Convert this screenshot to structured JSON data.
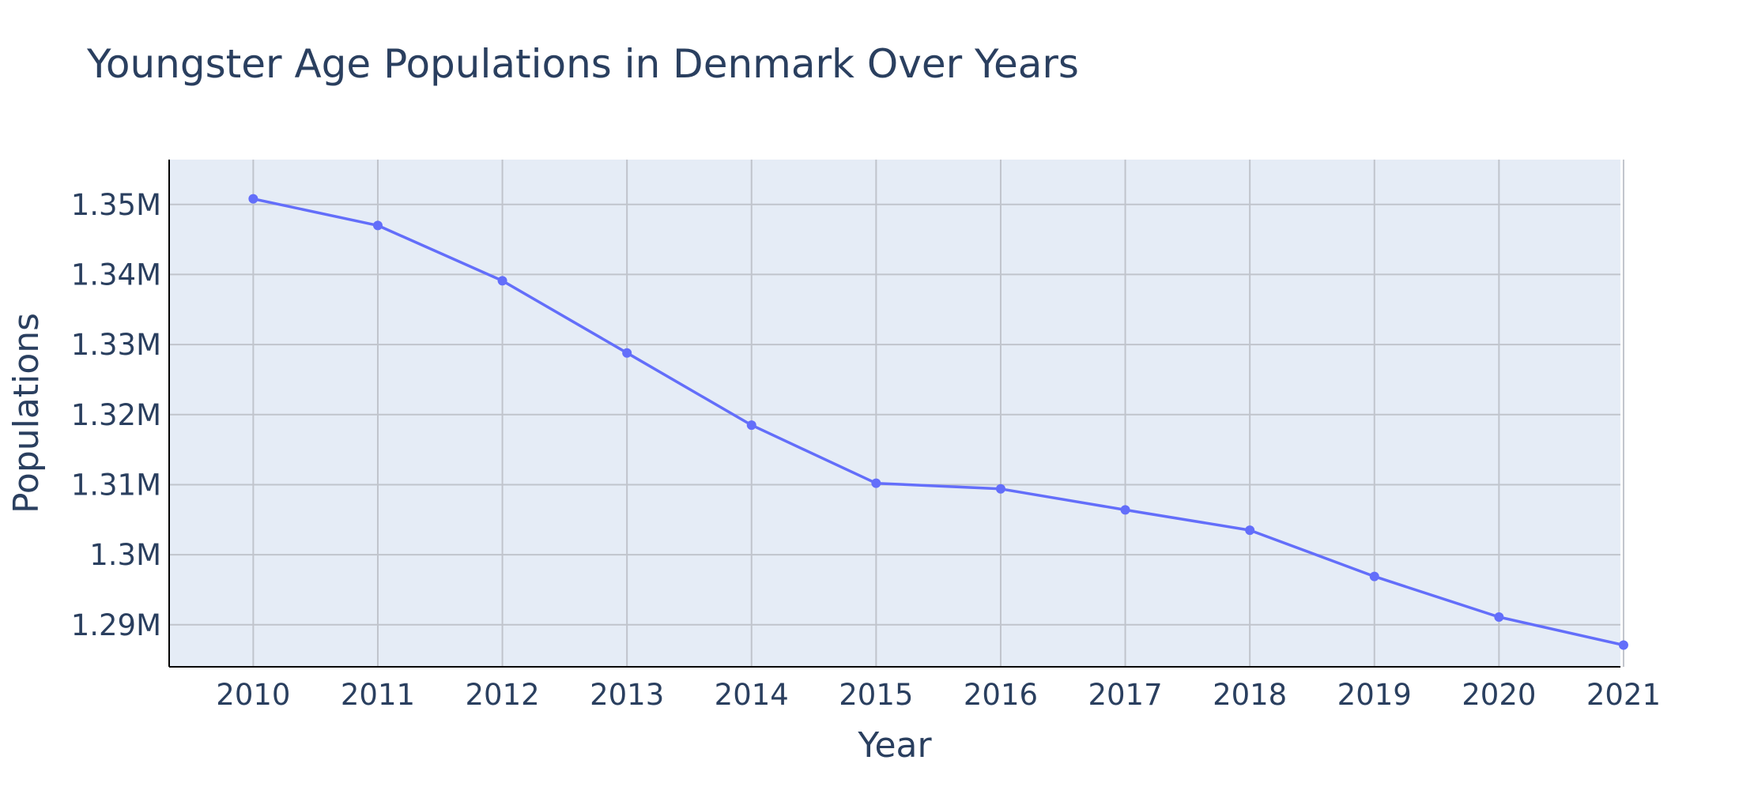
{
  "chart_data": {
    "type": "line",
    "title": "Youngster Age Populations in Denmark Over Years",
    "xlabel": "Year",
    "ylabel": "Populations",
    "x": [
      "2010",
      "2011",
      "2012",
      "2013",
      "2014",
      "2015",
      "2016",
      "2017",
      "2018",
      "2019",
      "2020",
      "2021"
    ],
    "series": [
      {
        "values": [
          1350800,
          1347000,
          1339100,
          1328800,
          1318500,
          1310200,
          1309400,
          1306400,
          1303500,
          1296900,
          1291100,
          1287100
        ]
      }
    ],
    "ylim": [
      1284000,
      1356400
    ],
    "yticks": [
      1290000,
      1300000,
      1310000,
      1320000,
      1330000,
      1340000,
      1350000
    ],
    "ytick_labels": [
      "1.29M",
      "1.3M",
      "1.31M",
      "1.32M",
      "1.33M",
      "1.34M",
      "1.35M"
    ],
    "grid": true,
    "legend": "none",
    "colors": {
      "line": "#636efa",
      "plot_background": "#e5ecf6",
      "grid": "#c0c4cc",
      "text": "#2a3f5f",
      "axis_line": "#000000"
    }
  }
}
